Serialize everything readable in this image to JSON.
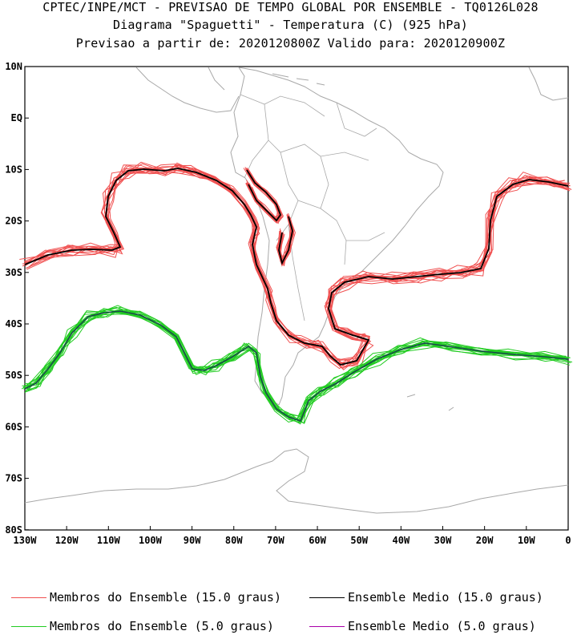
{
  "header": {
    "line1": "CPTEC/INPE/MCT - PREVISAO DE TEMPO GLOBAL POR ENSEMBLE - TQ0126L028",
    "line2": "Diagrama \"Spaguetti\" - Temperatura (C) (925 hPa)",
    "line3": "Previsao a partir de: 2020120800Z  Valido para: 2020120900Z"
  },
  "axes": {
    "lat_labels": [
      "10N",
      "EQ",
      "10S",
      "20S",
      "30S",
      "40S",
      "50S",
      "60S",
      "70S",
      "80S"
    ],
    "lon_labels": [
      "130W",
      "120W",
      "110W",
      "100W",
      "90W",
      "80W",
      "70W",
      "60W",
      "50W",
      "40W",
      "30W",
      "20W",
      "10W",
      "0"
    ]
  },
  "legend": {
    "members_15": "Membros do Ensemble (15.0 graus)",
    "mean_15": "Ensemble Medio (15.0 graus)",
    "members_5": "Membros do Ensemble (5.0 graus)",
    "mean_5": "Ensemble Medio (5.0 graus)"
  },
  "colors": {
    "members_15": "#f05050",
    "mean_15": "#000000",
    "members_5": "#22cc22",
    "mean_5": "#aa00aa",
    "coast": "#a8a8a8"
  }
}
